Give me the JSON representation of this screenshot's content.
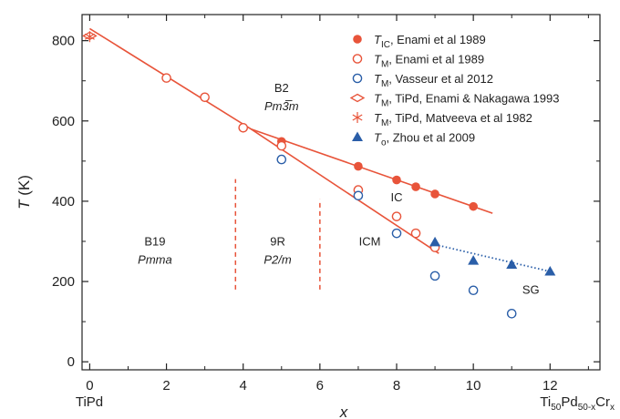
{
  "chart_data": {
    "type": "scatter",
    "xlabel": "x",
    "ylabel": "T (K)",
    "xlim": [
      -0.2,
      13.3
    ],
    "ylim": [
      -20,
      865
    ],
    "x_ticks": [
      "0",
      "2",
      "4",
      "6",
      "8",
      "10",
      "12"
    ],
    "y_ticks": [
      "0",
      "200",
      "400",
      "600",
      "800"
    ],
    "x_left_label": "TiPd",
    "x_right_label": {
      "text": "Ti",
      "sub1": "50",
      "mid": "Pd",
      "sub2": "50-x",
      "end": "Cr",
      "sub3": "x"
    },
    "legend_position": "top-right",
    "series": [
      {
        "name": {
          "sym": "T",
          "sub": "IC",
          "rest": ", Enami et al 1989"
        },
        "marker": "circle-filled",
        "color": "#e8543a",
        "points": [
          [
            5,
            549
          ],
          [
            7,
            487
          ],
          [
            8,
            453
          ],
          [
            8.5,
            436
          ],
          [
            9,
            418
          ],
          [
            10,
            387
          ]
        ]
      },
      {
        "name": {
          "sym": "T",
          "sub": "M",
          "rest": ", Enami et al 1989"
        },
        "marker": "circle-open",
        "color": "#e8543a",
        "points": [
          [
            2,
            707
          ],
          [
            3,
            659
          ],
          [
            4,
            583
          ],
          [
            5,
            538
          ],
          [
            7,
            428
          ],
          [
            8,
            362
          ],
          [
            8.5,
            320
          ],
          [
            9,
            285
          ]
        ]
      },
      {
        "name": {
          "sym": "T",
          "sub": "M",
          "rest": ", Vasseur et al 2012"
        },
        "marker": "circle-open",
        "color": "#2a5ea8",
        "points": [
          [
            5,
            504
          ],
          [
            7,
            414
          ],
          [
            8,
            320
          ],
          [
            9,
            214
          ],
          [
            10,
            178
          ],
          [
            11,
            120
          ]
        ]
      },
      {
        "name": {
          "sym": "T",
          "sub": "M",
          "rest": ", TiPd, Enami & Nakagawa 1993"
        },
        "marker": "diamond-open",
        "color": "#e8543a",
        "points": [
          [
            0,
            812
          ]
        ]
      },
      {
        "name": {
          "sym": "T",
          "sub": "M",
          "rest": ", TiPd, Matveeva et al 1982"
        },
        "marker": "asterisk",
        "color": "#e8543a",
        "points": [
          [
            0,
            810
          ]
        ]
      },
      {
        "name": {
          "sym": "T",
          "sub": "o",
          "rest": ", Zhou et al 2009"
        },
        "marker": "triangle-filled",
        "color": "#2a5ea8",
        "points": [
          [
            9,
            298
          ],
          [
            10,
            252
          ],
          [
            11,
            242
          ],
          [
            12,
            225
          ]
        ]
      }
    ],
    "lines": [
      {
        "kind": "fit",
        "color": "#e8543a",
        "points": [
          [
            0,
            830
          ],
          [
            4.2,
            580
          ],
          [
            9.1,
            270
          ]
        ]
      },
      {
        "kind": "fit",
        "color": "#e8543a",
        "points": [
          [
            4.2,
            580
          ],
          [
            10.5,
            370
          ]
        ]
      },
      {
        "kind": "dotted",
        "color": "#2a5ea8",
        "points": [
          [
            9,
            292
          ],
          [
            12,
            225
          ]
        ]
      }
    ],
    "boundaries": [
      {
        "x": 3.8,
        "ymin": 180,
        "ymax": 455,
        "color": "#e8543a"
      },
      {
        "x": 6.0,
        "ymin": 180,
        "ymax": 405,
        "color": "#e8543a"
      }
    ],
    "phase_labels": [
      {
        "text": "B2",
        "sub": "Pm3̅m",
        "x": 5.0,
        "y": 672
      },
      {
        "text": "B19",
        "sub": "Pmma",
        "x": 1.7,
        "y": 290
      },
      {
        "text": "9R",
        "sub": "P2/m",
        "x": 4.9,
        "y": 290
      },
      {
        "text": "ICM",
        "sub": "",
        "x": 7.3,
        "y": 290
      },
      {
        "text": "IC",
        "sub": "",
        "x": 8.0,
        "y": 400
      },
      {
        "text": "SG",
        "sub": "",
        "x": 11.5,
        "y": 170
      }
    ]
  }
}
